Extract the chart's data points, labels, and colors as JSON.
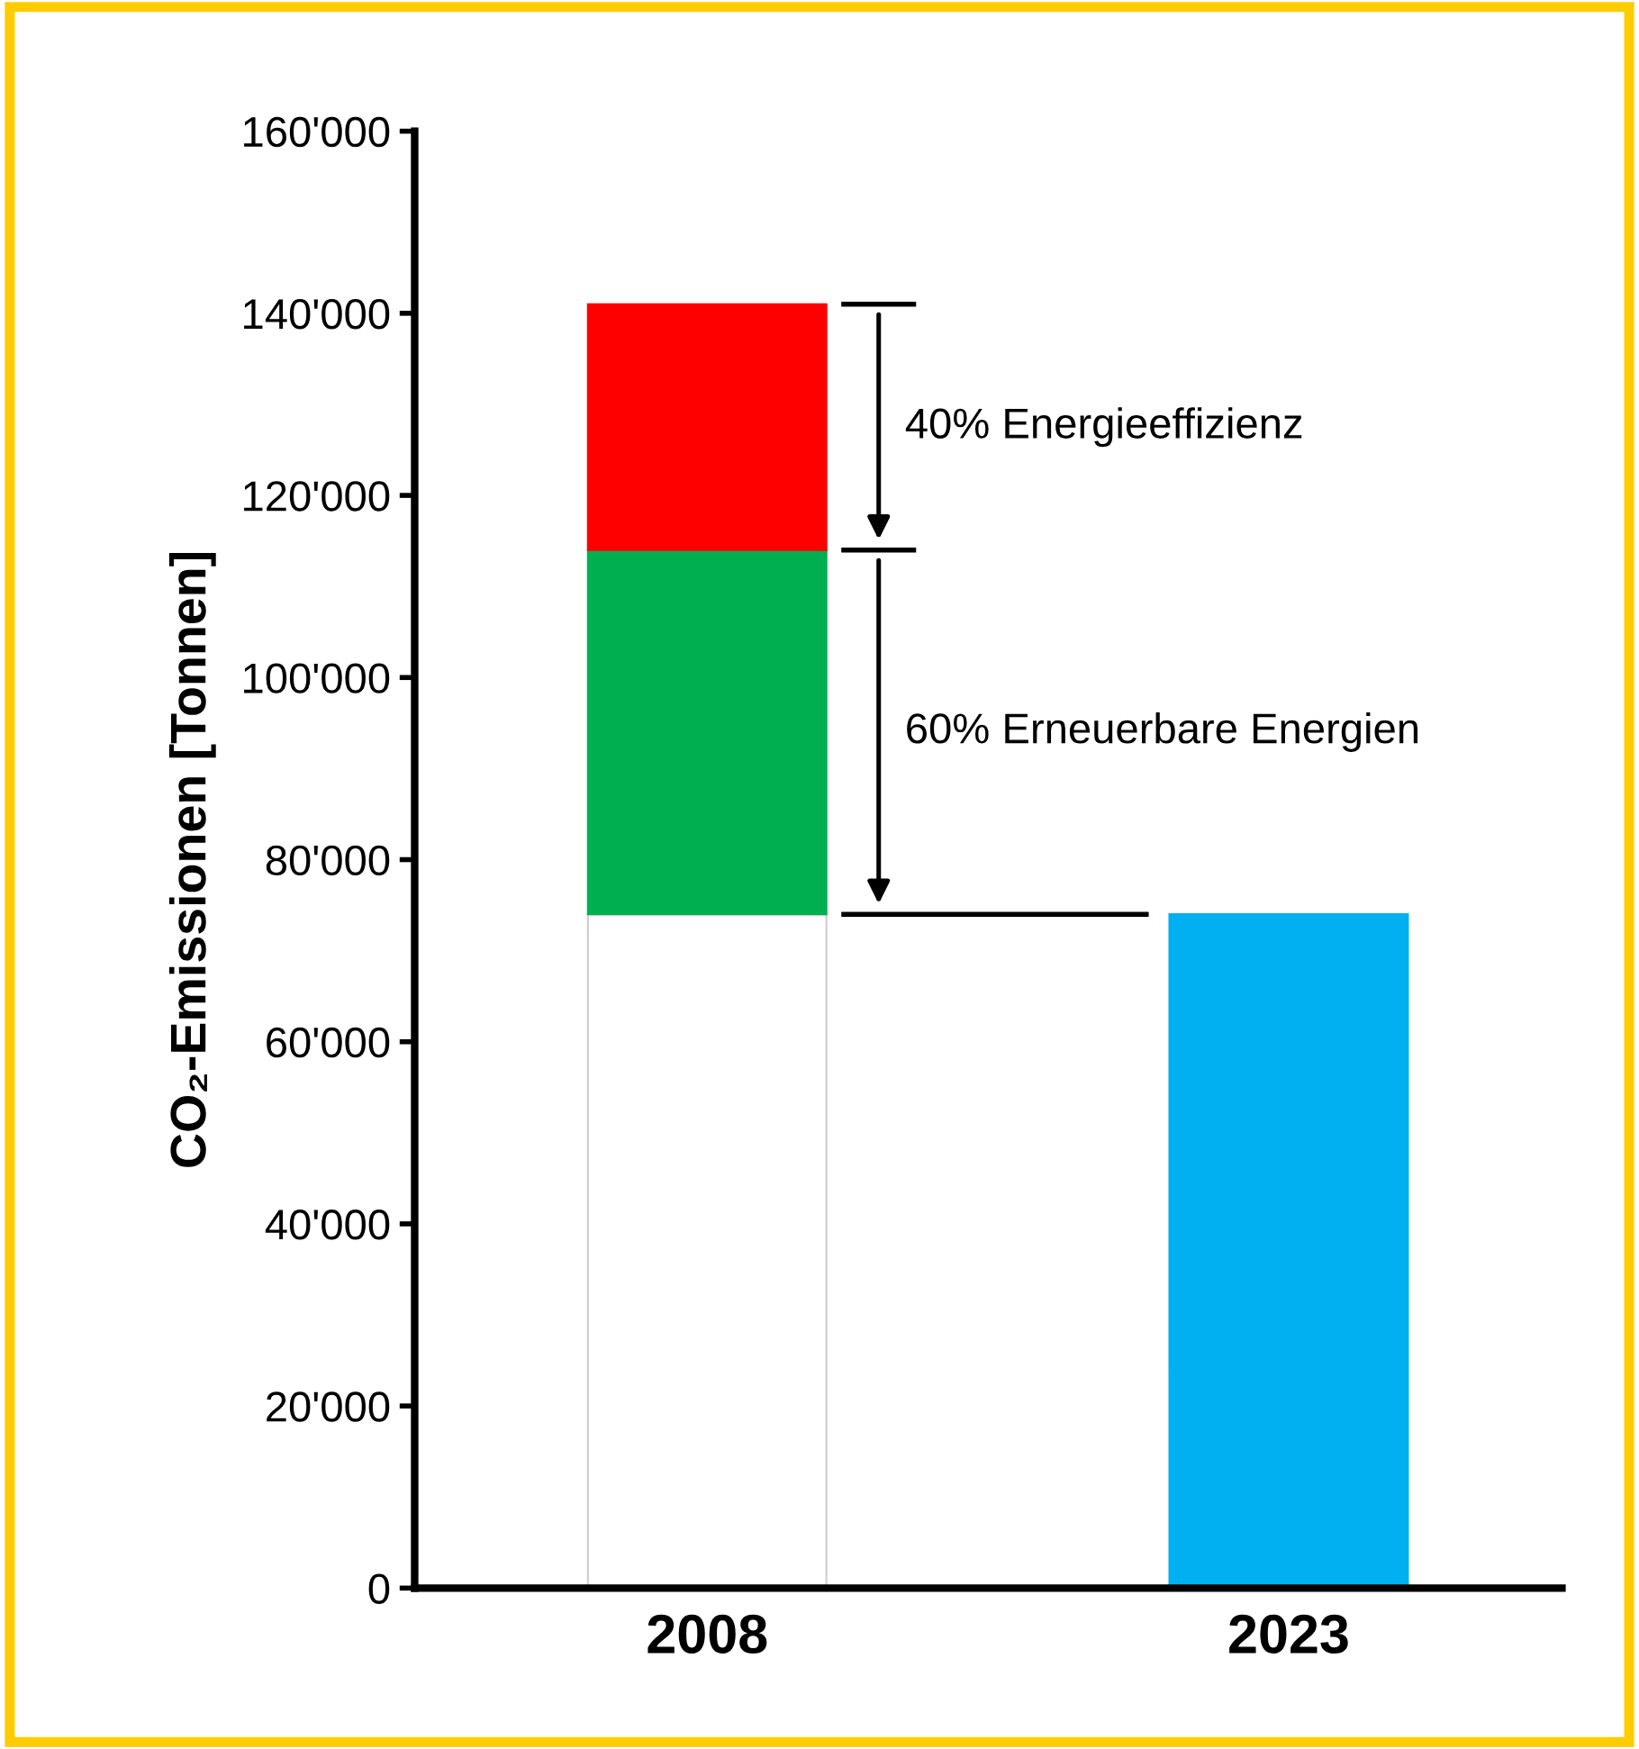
{
  "chart_data": {
    "type": "bar",
    "stacked": true,
    "categories": [
      "2008",
      "2023"
    ],
    "ylabel": "CO₂-Emissionen [Tonnen]",
    "ylim": [
      0,
      160000
    ],
    "yticks": [
      {
        "value": 0,
        "label": "0"
      },
      {
        "value": 20000,
        "label": "20'000"
      },
      {
        "value": 40000,
        "label": "40'000"
      },
      {
        "value": 60000,
        "label": "60'000"
      },
      {
        "value": 80000,
        "label": "80'000"
      },
      {
        "value": 100000,
        "label": "100'000"
      },
      {
        "value": 120000,
        "label": "120'000"
      },
      {
        "value": 140000,
        "label": "140'000"
      },
      {
        "value": 160000,
        "label": "160'000"
      }
    ],
    "series": [
      {
        "colors": [
          "#ffffff",
          "#00b0f0"
        ],
        "values": [
          74000,
          74000
        ]
      },
      {
        "color": "#00b050",
        "values": [
          40000,
          null
        ]
      },
      {
        "color": "#ff0000",
        "values": [
          27000,
          null
        ]
      }
    ],
    "annotations": [
      "40% Energieeffizienz",
      "60% Erneuerbare Energien"
    ],
    "grid": false,
    "legend": false
  }
}
